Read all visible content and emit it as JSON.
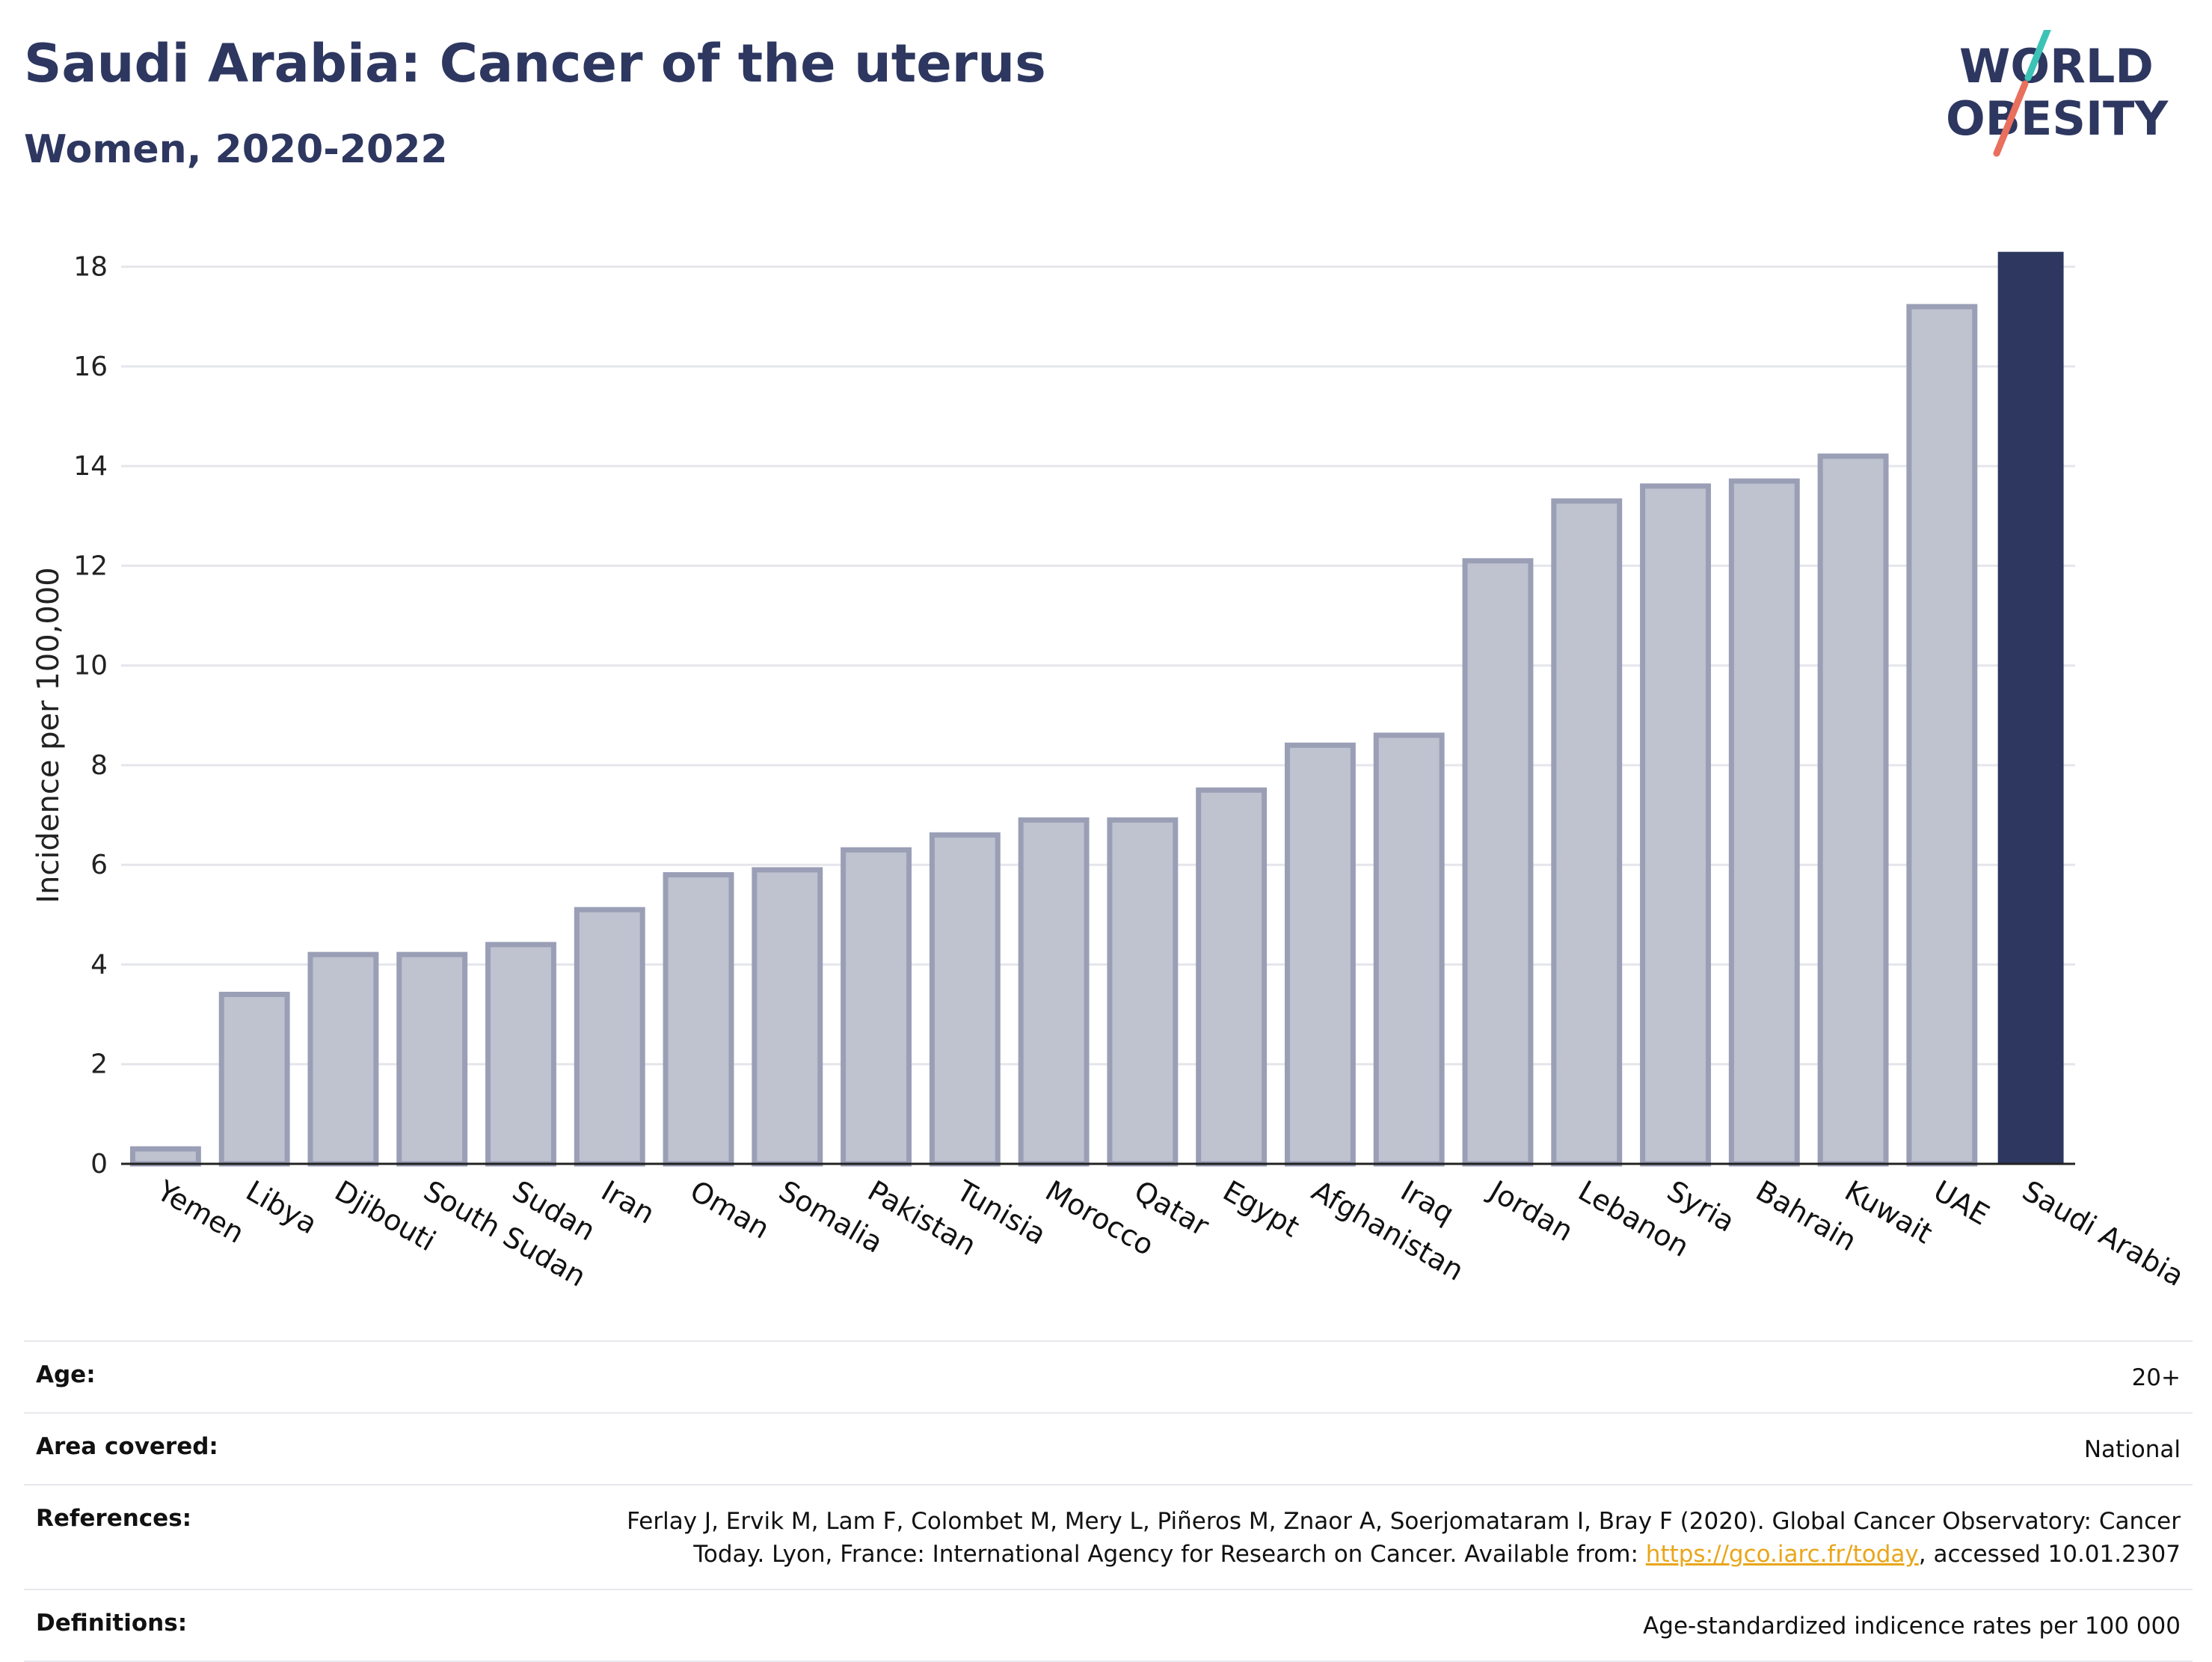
{
  "header": {
    "title": "Saudi Arabia: Cancer of the uterus",
    "subtitle": "Women, 2020-2022"
  },
  "logo": {
    "line1": "WORLD",
    "line2": "OBESITY",
    "accent1": "#3cc3b6",
    "accent2": "#e8705c"
  },
  "colors": {
    "bar": "#bfc2cf",
    "bar_stroke": "#9a9fb6",
    "highlight": "#2d3760",
    "grid": "#e5e6ec",
    "axis": "#222222"
  },
  "chart_data": {
    "type": "bar",
    "title": "Saudi Arabia: Cancer of the uterus",
    "subtitle": "Women, 2020-2022",
    "ylabel": "Incidence per 100,000",
    "xlabel": "",
    "ylim": [
      0,
      18.4
    ],
    "yticks": [
      0,
      2,
      4,
      6,
      8,
      10,
      12,
      14,
      16,
      18
    ],
    "grid": true,
    "highlight": "Saudi Arabia",
    "categories": [
      "Yemen",
      "Libya",
      "Djibouti",
      "South Sudan",
      "Sudan",
      "Iran",
      "Oman",
      "Somalia",
      "Pakistan",
      "Tunisia",
      "Morocco",
      "Qatar",
      "Egypt",
      "Afghanistan",
      "Iraq",
      "Jordan",
      "Lebanon",
      "Syria",
      "Bahrain",
      "Kuwait",
      "UAE",
      "Saudi Arabia"
    ],
    "values": [
      0.3,
      3.4,
      4.2,
      4.2,
      4.4,
      5.1,
      5.8,
      5.9,
      6.3,
      6.6,
      6.9,
      6.9,
      7.5,
      8.4,
      8.6,
      12.1,
      13.3,
      13.6,
      13.7,
      14.2,
      17.2,
      18.3
    ]
  },
  "metadata": [
    {
      "label": "Age:",
      "value": "20+"
    },
    {
      "label": "Area covered:",
      "value": "National"
    },
    {
      "label": "References:",
      "value_line1": "Ferlay J, Ervik M, Lam F, Colombet M, Mery L, Piñeros M, Znaor A, Soerjomataram I, Bray F (2020). Global Cancer Observatory: Cancer",
      "value_prefix": "Today. Lyon, France: International Agency for Research on Cancer. Available from: ",
      "link": "https://gco.iarc.fr/today",
      "value_suffix": ", accessed 10.01.2307"
    },
    {
      "label": "Definitions:",
      "value": "Age-standardized indicence rates per 100 000"
    }
  ]
}
